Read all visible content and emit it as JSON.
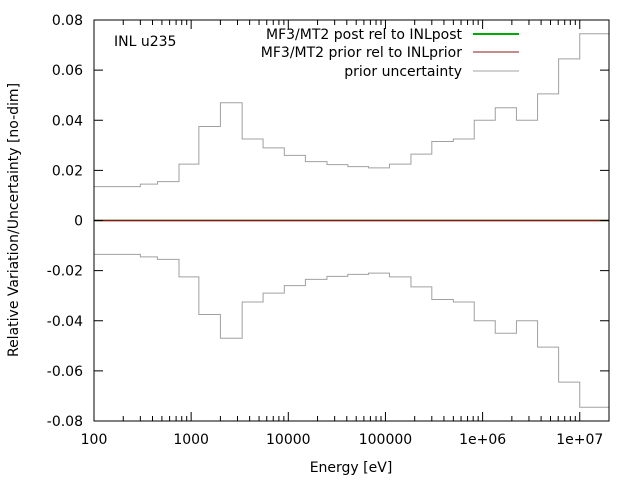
{
  "chart_data": {
    "type": "line",
    "annotation": "INL u235",
    "xlabel": "Energy [eV]",
    "ylabel": "Relative Variation/Uncertainty [no-dim]",
    "xscale": "log",
    "xlim": [
      100,
      20000000
    ],
    "ylim": [
      -0.08,
      0.08
    ],
    "grid": false,
    "legend_position": "top-right",
    "x_ticks": [
      {
        "value": 100,
        "label": "100"
      },
      {
        "value": 1000,
        "label": "1000"
      },
      {
        "value": 10000,
        "label": "10000"
      },
      {
        "value": 100000,
        "label": "100000"
      },
      {
        "value": 1000000,
        "label": "1e+06"
      },
      {
        "value": 10000000,
        "label": "1e+07"
      }
    ],
    "y_ticks": [
      {
        "value": 0.08,
        "label": "0.08"
      },
      {
        "value": 0.06,
        "label": "0.06"
      },
      {
        "value": 0.04,
        "label": "0.04"
      },
      {
        "value": 0.02,
        "label": "0.02"
      },
      {
        "value": 0,
        "label": "0"
      },
      {
        "value": -0.02,
        "label": "-0.02"
      },
      {
        "value": -0.04,
        "label": "-0.04"
      },
      {
        "value": -0.06,
        "label": "-0.06"
      },
      {
        "value": -0.08,
        "label": "-0.08"
      }
    ],
    "series": [
      {
        "name": "MF3/MT2 post rel to INLpost",
        "color": "#00aa00",
        "style": "line",
        "x": [
          100,
          20000000
        ],
        "y": [
          0,
          0
        ]
      },
      {
        "name": "MF3/MT2 prior rel to INLprior",
        "color": "#8b1a1a",
        "style": "line",
        "x": [
          100,
          20000000
        ],
        "y": [
          0,
          0
        ]
      },
      {
        "name": "prior uncertainty",
        "color": "#a0a0a0",
        "style": "step",
        "symmetric": true,
        "bin_edges": [
          100,
          300,
          450,
          750,
          1200,
          2000,
          3350,
          5500,
          9100,
          15000,
          25000,
          41000,
          67000,
          110000,
          183000,
          300000,
          500000,
          820000,
          1350000,
          2230000,
          3680000,
          6060000,
          10000000,
          20000000
        ],
        "values": [
          0.0135,
          0.0145,
          0.0155,
          0.0225,
          0.0375,
          0.047,
          0.0325,
          0.029,
          0.026,
          0.0235,
          0.0223,
          0.0215,
          0.021,
          0.0225,
          0.0265,
          0.0315,
          0.0325,
          0.04,
          0.045,
          0.04,
          0.0505,
          0.0645,
          0.0745
        ]
      }
    ]
  }
}
